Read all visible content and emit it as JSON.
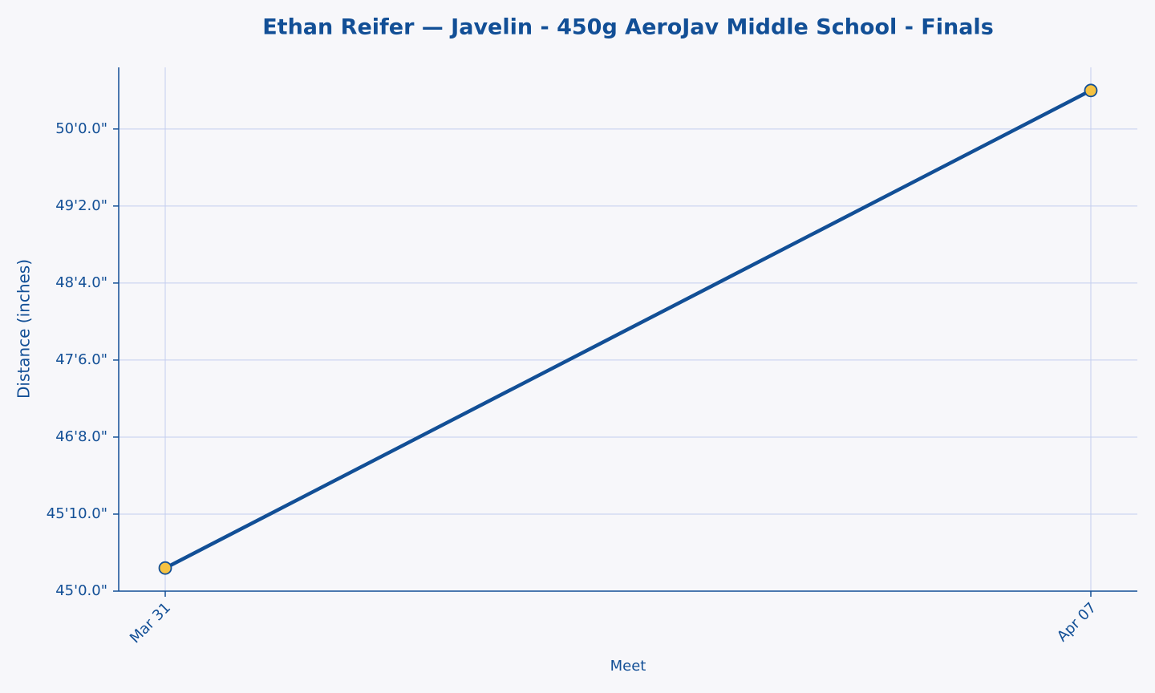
{
  "chart_data": {
    "type": "line",
    "title": "Ethan Reifer — Javelin - 450g AeroJav Middle School - Finals",
    "x_label": "Meet",
    "y_label": "Distance (inches)",
    "categories": [
      "Mar 31",
      "Apr 07"
    ],
    "series": [
      {
        "name": "Distance",
        "color": "#124f96",
        "marker_color": "#f5c242",
        "values": [
          543,
          605
        ]
      }
    ],
    "ylim": [
      540,
      608
    ],
    "yticks": [
      {
        "value": 540,
        "label": "45'0.0\""
      },
      {
        "value": 550,
        "label": "45'10.0\""
      },
      {
        "value": 560,
        "label": "46'8.0\""
      },
      {
        "value": 570,
        "label": "47'6.0\""
      },
      {
        "value": 580,
        "label": "48'4.0\""
      },
      {
        "value": 590,
        "label": "49'2.0\""
      },
      {
        "value": 600,
        "label": "50'0.0\""
      }
    ],
    "grid": true
  }
}
